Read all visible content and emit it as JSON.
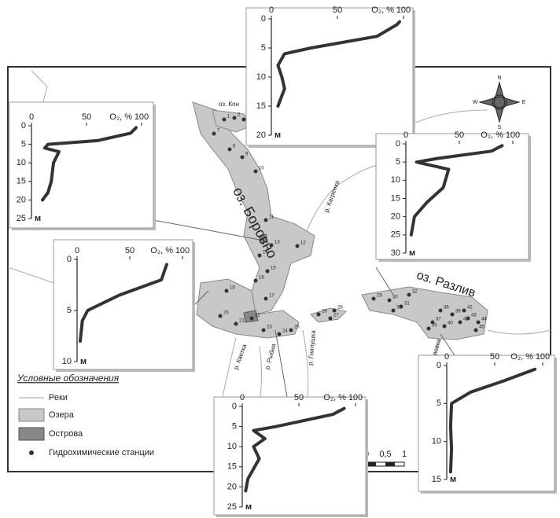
{
  "map": {
    "lake_labels": [
      "оз. Боровно",
      "оз. Разлив",
      "оз. Кон"
    ],
    "river_labels": [
      "р. Кагренка",
      "р. Кветка",
      "р. Рыбна",
      "р. Гнилушка",
      "р. Воровка"
    ],
    "compass": [
      "N",
      "E",
      "S",
      "W"
    ],
    "scale": [
      "0",
      "0,5",
      "1"
    ],
    "stations": [
      "1",
      "2",
      "3",
      "6",
      "7",
      "9",
      "10",
      "11",
      "12",
      "13",
      "14",
      "15",
      "16",
      "17",
      "18",
      "20",
      "21",
      "22",
      "23",
      "24",
      "25",
      "26",
      "27",
      "28",
      "29",
      "30",
      "31",
      "32",
      "33",
      "35",
      "36",
      "37",
      "39",
      "40",
      "41",
      "42",
      "43",
      "44",
      "45"
    ]
  },
  "legend": {
    "title": "Условные обозначения",
    "items": [
      "Реки",
      "Озера",
      "Острова",
      "Гидрохимические станции"
    ]
  },
  "chart_data": [
    {
      "type": "line",
      "x_label": "O₂, %",
      "y_label": "м",
      "xlim": [
        0,
        100
      ],
      "xticks": [
        0,
        50,
        100
      ],
      "ylim": [
        0,
        20
      ],
      "yticks": [
        0,
        5,
        10,
        15,
        20
      ],
      "color": "#333333",
      "x": [
        97,
        95,
        80,
        30,
        10,
        5,
        8,
        10,
        5
      ],
      "values": [
        0.5,
        1,
        3,
        5,
        6,
        8,
        10,
        12,
        15
      ]
    },
    {
      "type": "line",
      "x_label": "O₂, %",
      "y_label": "м",
      "xlim": [
        0,
        100
      ],
      "xticks": [
        0,
        50,
        100
      ],
      "ylim": [
        0,
        25
      ],
      "yticks": [
        0,
        5,
        10,
        15,
        20,
        25
      ],
      "color": "#333333",
      "x": [
        95,
        90,
        60,
        15,
        12,
        25,
        20,
        18,
        15,
        10
      ],
      "values": [
        0.5,
        2,
        4,
        5,
        6,
        7,
        10,
        15,
        18,
        20
      ]
    },
    {
      "type": "line",
      "x_label": "O₂, %",
      "y_label": "м",
      "xlim": [
        0,
        100
      ],
      "xticks": [
        0,
        50,
        100
      ],
      "ylim": [
        0,
        30
      ],
      "yticks": [
        0,
        5,
        10,
        15,
        20,
        25,
        30
      ],
      "color": "#333333",
      "x": [
        90,
        80,
        30,
        10,
        40,
        35,
        20,
        8,
        5
      ],
      "values": [
        0.5,
        2,
        4,
        5,
        7,
        12,
        16,
        20,
        25
      ]
    },
    {
      "type": "line",
      "x_label": "O₂, %",
      "y_label": "м",
      "xlim": [
        0,
        100
      ],
      "xticks": [
        0,
        50,
        100
      ],
      "ylim": [
        0,
        10
      ],
      "yticks": [
        0,
        5,
        10
      ],
      "color": "#333333",
      "x": [
        85,
        80,
        40,
        10,
        5,
        3
      ],
      "values": [
        0.5,
        2,
        3.5,
        5,
        6,
        8
      ]
    },
    {
      "type": "line",
      "x_label": "O₂, %",
      "y_label": "м",
      "xlim": [
        0,
        100
      ],
      "xticks": [
        0,
        50,
        100
      ],
      "ylim": [
        0,
        25
      ],
      "yticks": [
        0,
        5,
        10,
        15,
        20,
        25
      ],
      "color": "#333333",
      "x": [
        90,
        80,
        30,
        10,
        20,
        10,
        15,
        5,
        3
      ],
      "values": [
        0.5,
        2,
        5,
        6,
        8,
        10,
        13,
        18,
        21
      ]
    },
    {
      "type": "line",
      "x_label": "O₂, %",
      "y_label": "м",
      "xlim": [
        0,
        100
      ],
      "xticks": [
        0,
        50,
        100
      ],
      "ylim": [
        0,
        15
      ],
      "yticks": [
        0,
        5,
        10,
        15
      ],
      "color": "#333333",
      "x": [
        92,
        60,
        25,
        5,
        4,
        5,
        4
      ],
      "values": [
        0.5,
        2,
        3.5,
        5,
        8,
        11,
        14
      ]
    }
  ]
}
